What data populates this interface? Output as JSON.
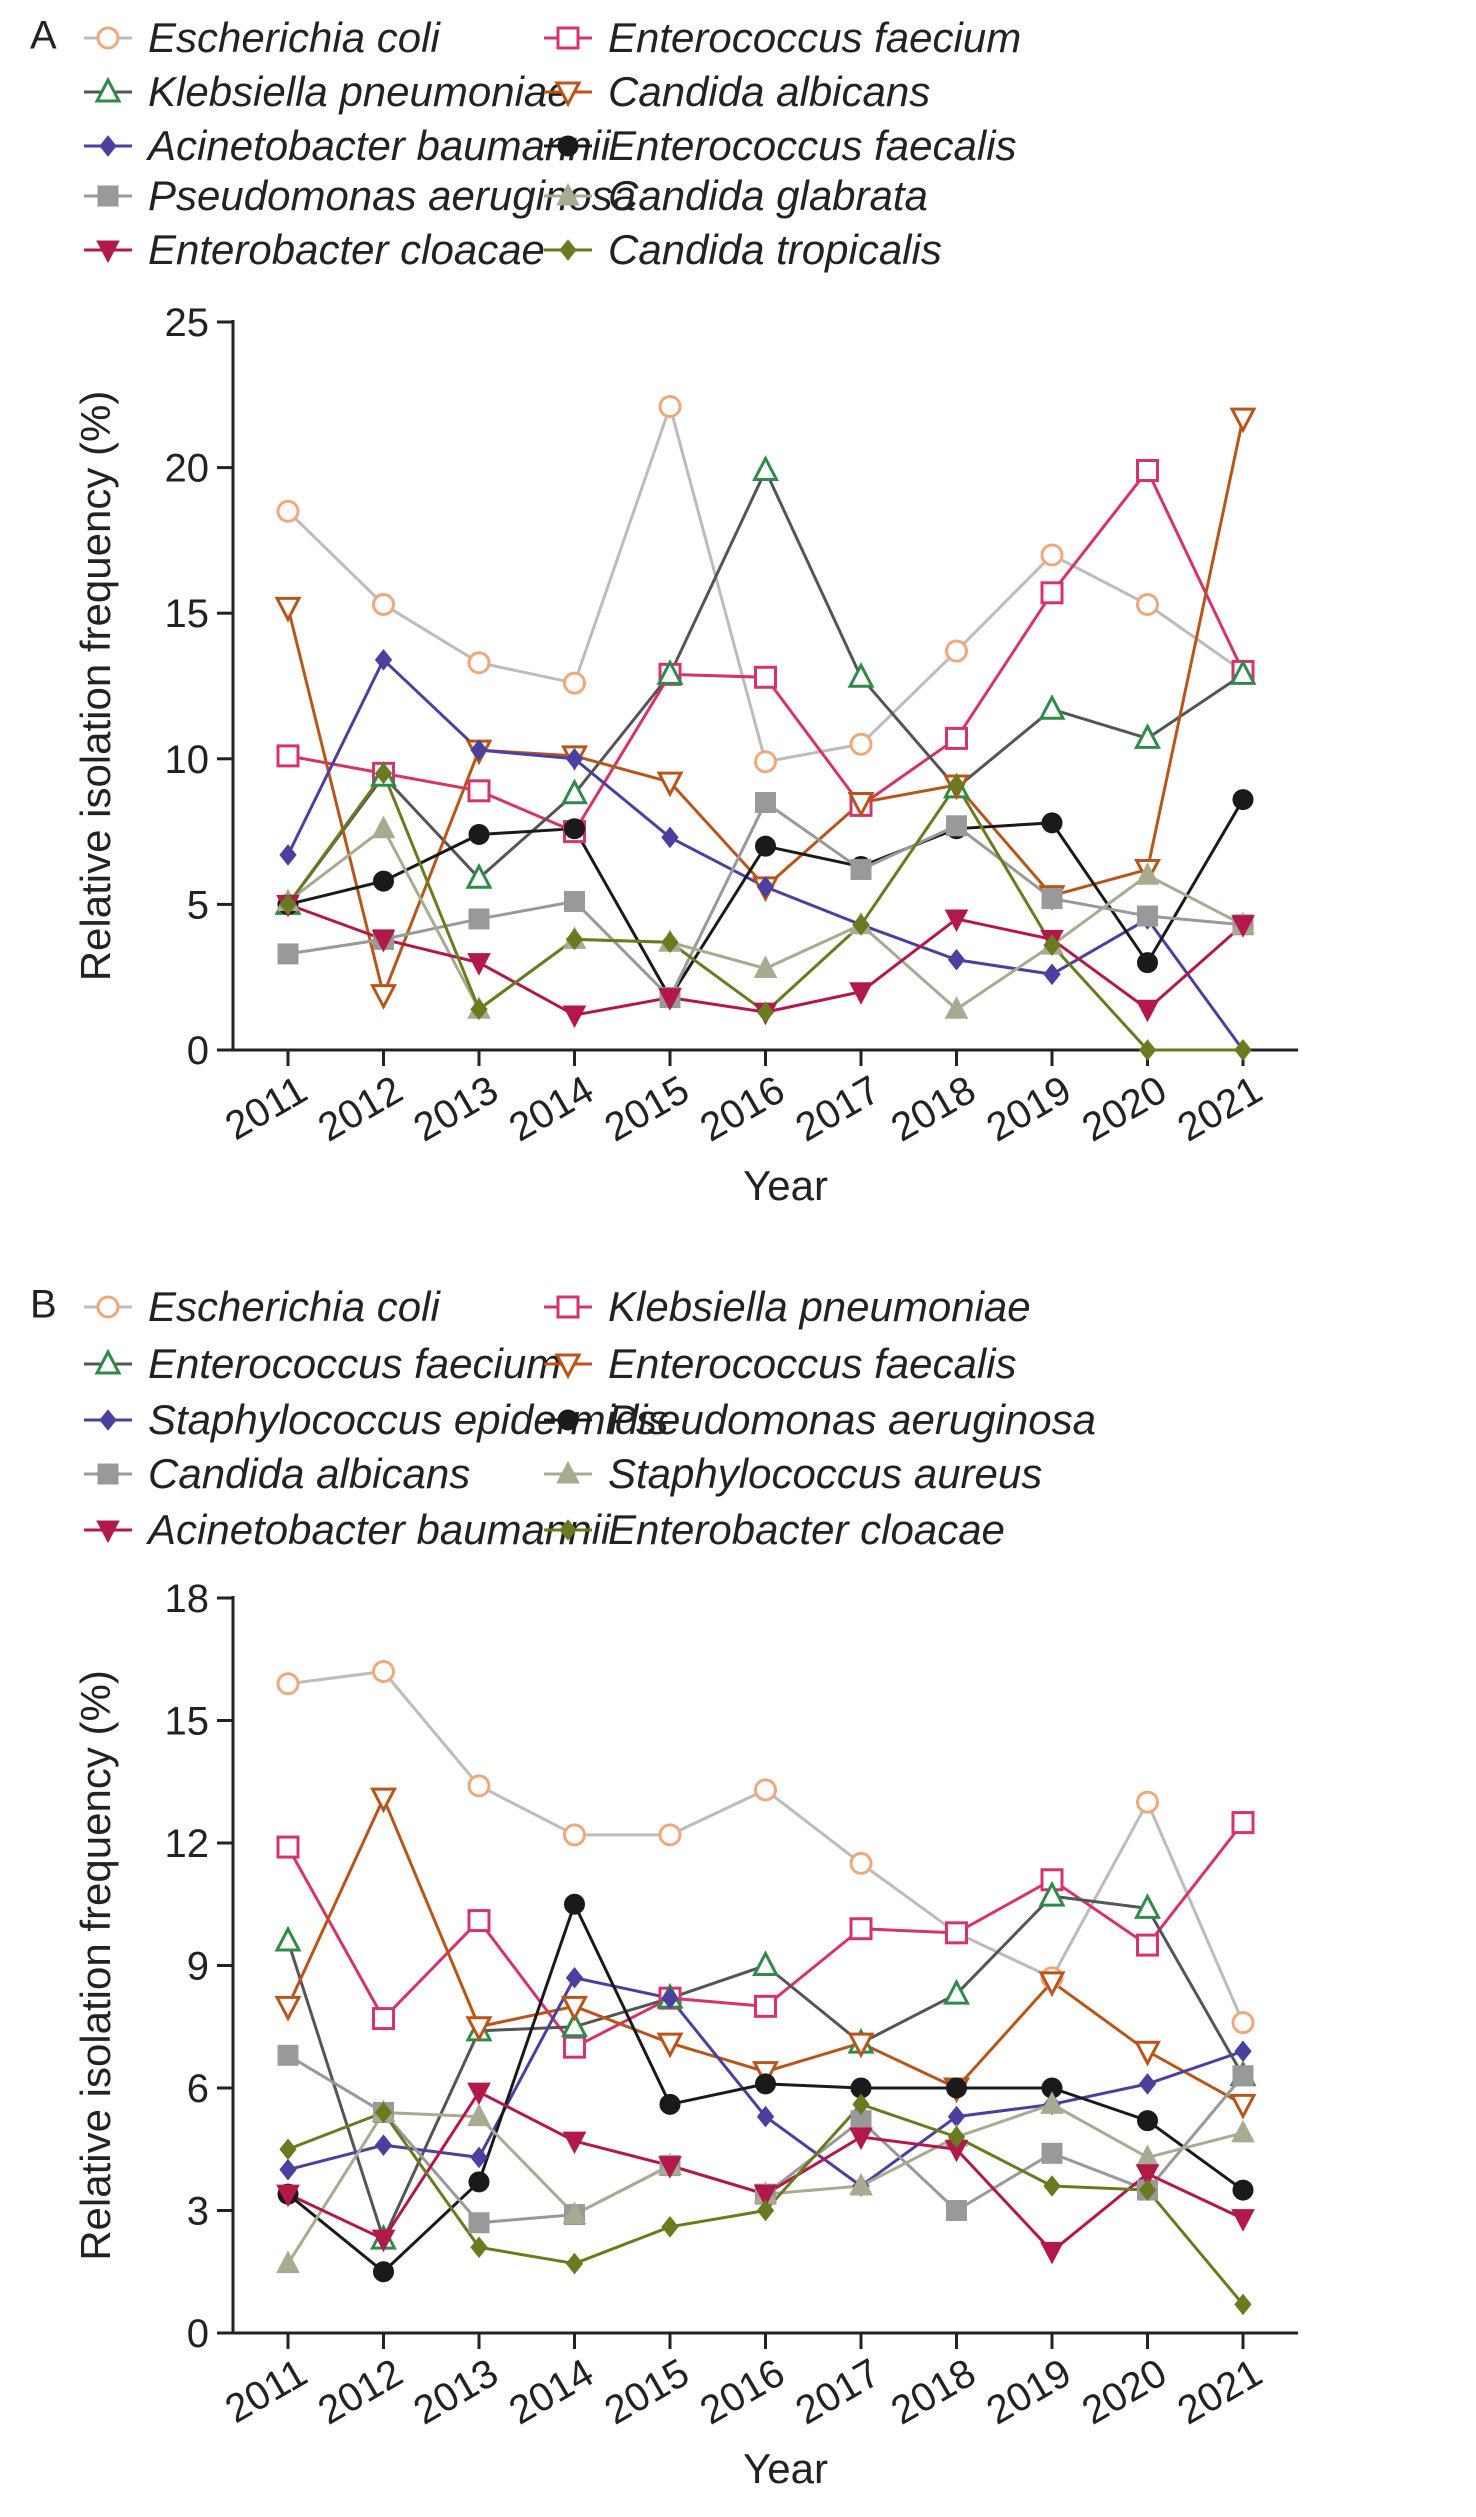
{
  "chart_data": [
    {
      "type": "line",
      "panel_label": "A",
      "xlabel": "Year",
      "ylabel": "Relative isolation frequency (%)",
      "ylim": [
        0,
        25
      ],
      "yticks": [
        0,
        5,
        10,
        15,
        20,
        25
      ],
      "categories": [
        "2011",
        "2012",
        "2013",
        "2014",
        "2015",
        "2016",
        "2017",
        "2018",
        "2019",
        "2020",
        "2021"
      ],
      "grid": false,
      "legend_position": "top",
      "series": [
        {
          "name": "Escherichia coli",
          "color": "#f0a87a",
          "line_color": "#bcbcbc",
          "marker": "circle-open",
          "values": [
            18.5,
            15.3,
            13.3,
            12.6,
            22.1,
            9.9,
            10.5,
            13.7,
            17.0,
            15.3,
            13.0
          ]
        },
        {
          "name": "Enterococcus faecium",
          "color": "#d6336c",
          "line_color": "#d6336c",
          "marker": "square-open",
          "values": [
            10.1,
            9.5,
            8.9,
            7.5,
            12.9,
            12.8,
            8.4,
            10.7,
            15.7,
            19.9,
            13.0
          ]
        },
        {
          "name": "Klebsiella pneumoniae",
          "color": "#2e8b4a",
          "line_color": "#555555",
          "marker": "triangle-open",
          "values": [
            5.0,
            9.4,
            5.9,
            8.8,
            12.9,
            19.9,
            12.8,
            9.0,
            11.7,
            10.7,
            12.9
          ]
        },
        {
          "name": "Candida albicans",
          "color": "#b8551a",
          "line_color": "#b8551a",
          "marker": "triangle-down-open",
          "values": [
            15.2,
            1.9,
            10.3,
            10.1,
            9.2,
            5.6,
            8.5,
            9.1,
            5.3,
            6.2,
            21.7
          ]
        },
        {
          "name": "Acinetobacter baumannii",
          "color": "#4b3fa0",
          "line_color": "#4b3fa0",
          "marker": "diamond",
          "values": [
            6.7,
            13.4,
            10.3,
            10.0,
            7.3,
            5.6,
            4.3,
            3.1,
            2.6,
            4.5,
            0.0
          ]
        },
        {
          "name": "Enterococcus faecalis",
          "color": "#1a1a1a",
          "line_color": "#1a1a1a",
          "marker": "circle",
          "values": [
            5.0,
            5.8,
            7.4,
            7.6,
            1.8,
            7.0,
            6.3,
            7.6,
            7.8,
            3.0,
            8.6
          ]
        },
        {
          "name": "Pseudomonas aeruginosa",
          "color": "#999999",
          "line_color": "#999999",
          "marker": "square",
          "values": [
            3.3,
            3.8,
            4.5,
            5.1,
            1.8,
            8.5,
            6.2,
            7.7,
            5.2,
            4.6,
            4.3
          ]
        },
        {
          "name": "Candida glabrata",
          "color": "#a8ab90",
          "line_color": "#a8ab90",
          "marker": "triangle",
          "values": [
            5.1,
            7.6,
            1.4,
            3.8,
            3.7,
            2.8,
            4.3,
            1.4,
            3.6,
            6.0,
            4.3
          ]
        },
        {
          "name": "Enterobacter cloacae",
          "color": "#b3184a",
          "line_color": "#b3184a",
          "marker": "triangle-down",
          "values": [
            5.0,
            3.8,
            3.0,
            1.2,
            1.8,
            1.3,
            2.0,
            4.5,
            3.8,
            1.4,
            4.3
          ]
        },
        {
          "name": "Candida tropicalis",
          "color": "#6b7a1e",
          "line_color": "#6b7a1e",
          "marker": "diamond",
          "values": [
            5.0,
            9.5,
            1.4,
            3.8,
            3.7,
            1.3,
            4.3,
            9.1,
            3.6,
            0.0,
            0.0
          ]
        }
      ]
    },
    {
      "type": "line",
      "panel_label": "B",
      "xlabel": "Year",
      "ylabel": "Relative isolation frequency (%)",
      "ylim": [
        0,
        18
      ],
      "yticks": [
        0,
        3,
        6,
        9,
        12,
        15,
        18
      ],
      "categories": [
        "2011",
        "2012",
        "2013",
        "2014",
        "2015",
        "2016",
        "2017",
        "2018",
        "2019",
        "2020",
        "2021"
      ],
      "grid": false,
      "legend_position": "top",
      "series": [
        {
          "name": "Escherichia coli",
          "color": "#f0a87a",
          "line_color": "#bcbcbc",
          "marker": "circle-open",
          "values": [
            15.9,
            16.2,
            13.4,
            12.2,
            12.2,
            13.3,
            11.5,
            9.8,
            8.7,
            13.0,
            7.6
          ]
        },
        {
          "name": "Klebsiella pneumoniae",
          "color": "#d6336c",
          "line_color": "#d6336c",
          "marker": "square-open",
          "values": [
            11.9,
            7.7,
            10.1,
            7.0,
            8.2,
            8.0,
            9.9,
            9.8,
            11.1,
            9.5,
            12.5
          ]
        },
        {
          "name": "Enterococcus faecium",
          "color": "#2e8b4a",
          "line_color": "#555555",
          "marker": "triangle-open",
          "values": [
            9.6,
            2.3,
            7.4,
            7.5,
            8.2,
            9.0,
            7.1,
            8.3,
            10.7,
            10.4,
            6.3
          ]
        },
        {
          "name": "Enterococcus faecalis",
          "color": "#b8551a",
          "line_color": "#b8551a",
          "marker": "triangle-down-open",
          "values": [
            8.0,
            13.1,
            7.5,
            8.0,
            7.1,
            6.4,
            7.1,
            6.0,
            8.6,
            6.9,
            5.6
          ]
        },
        {
          "name": "Staphylococcus epidermidis",
          "color": "#4b3fa0",
          "line_color": "#4b3fa0",
          "marker": "diamond",
          "values": [
            4.0,
            4.6,
            4.3,
            8.7,
            8.2,
            5.3,
            3.6,
            5.3,
            5.6,
            6.1,
            6.9
          ]
        },
        {
          "name": "Pseudomonas aeruginosa",
          "color": "#1a1a1a",
          "line_color": "#1a1a1a",
          "marker": "circle",
          "values": [
            3.4,
            1.5,
            3.7,
            10.5,
            5.6,
            6.1,
            6.0,
            6.0,
            6.0,
            5.2,
            3.5
          ]
        },
        {
          "name": "Candida albicans",
          "color": "#999999",
          "line_color": "#999999",
          "marker": "square",
          "values": [
            6.8,
            5.4,
            2.7,
            2.9,
            4.1,
            3.4,
            5.2,
            3.0,
            4.4,
            3.5,
            6.3
          ]
        },
        {
          "name": "Staphylococcus aureus",
          "color": "#a8ab90",
          "line_color": "#a8ab90",
          "marker": "triangle",
          "values": [
            1.7,
            5.4,
            5.3,
            2.9,
            4.1,
            3.4,
            3.6,
            4.8,
            5.6,
            4.3,
            4.9
          ]
        },
        {
          "name": "Acinetobacter baumannii",
          "color": "#b3184a",
          "line_color": "#b3184a",
          "marker": "triangle-down",
          "values": [
            3.4,
            2.3,
            5.9,
            4.7,
            4.1,
            3.4,
            4.8,
            4.5,
            2.0,
            3.9,
            2.8
          ]
        },
        {
          "name": "Enterobacter cloacae",
          "color": "#6b7a1e",
          "line_color": "#6b7a1e",
          "marker": "diamond",
          "values": [
            4.5,
            5.4,
            2.1,
            1.7,
            2.6,
            3.0,
            5.6,
            4.8,
            3.6,
            3.5,
            0.7
          ]
        }
      ]
    }
  ]
}
